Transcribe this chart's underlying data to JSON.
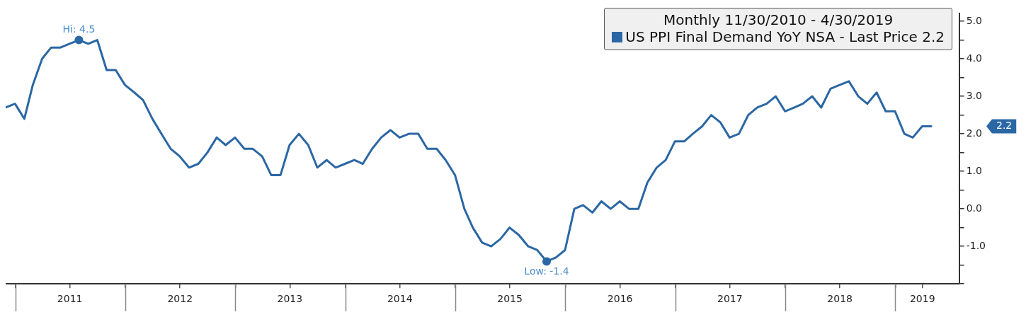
{
  "chart_data": {
    "type": "line",
    "legend_title": "Monthly 11/30/2010 - 4/30/2019",
    "legend": "top right",
    "marker": "none",
    "line_style": "solid",
    "x": [
      "2010-11-30",
      "2010-12-31",
      "2011-01-31",
      "2011-02-28",
      "2011-03-31",
      "2011-04-30",
      "2011-05-31",
      "2011-06-30",
      "2011-07-31",
      "2011-08-31",
      "2011-09-30",
      "2011-10-31",
      "2011-11-30",
      "2011-12-31",
      "2012-01-31",
      "2012-02-29",
      "2012-03-31",
      "2012-04-30",
      "2012-05-31",
      "2012-06-30",
      "2012-07-31",
      "2012-08-31",
      "2012-09-30",
      "2012-10-31",
      "2012-11-30",
      "2012-12-31",
      "2013-01-31",
      "2013-02-28",
      "2013-03-31",
      "2013-04-30",
      "2013-05-31",
      "2013-06-30",
      "2013-07-31",
      "2013-08-31",
      "2013-09-30",
      "2013-10-31",
      "2013-11-30",
      "2013-12-31",
      "2014-01-31",
      "2014-02-28",
      "2014-03-31",
      "2014-04-30",
      "2014-05-31",
      "2014-06-30",
      "2014-07-31",
      "2014-08-31",
      "2014-09-30",
      "2014-10-31",
      "2014-11-30",
      "2014-12-31",
      "2015-01-31",
      "2015-02-28",
      "2015-03-31",
      "2015-04-30",
      "2015-05-31",
      "2015-06-30",
      "2015-07-31",
      "2015-08-31",
      "2015-09-30",
      "2015-10-31",
      "2015-11-30",
      "2015-12-31",
      "2016-01-31",
      "2016-02-29",
      "2016-03-31",
      "2016-04-30",
      "2016-05-31",
      "2016-06-30",
      "2016-07-31",
      "2016-08-31",
      "2016-09-30",
      "2016-10-31",
      "2016-11-30",
      "2016-12-31",
      "2017-01-31",
      "2017-02-28",
      "2017-03-31",
      "2017-04-30",
      "2017-05-31",
      "2017-06-30",
      "2017-07-31",
      "2017-08-31",
      "2017-09-30",
      "2017-10-31",
      "2017-11-30",
      "2017-12-31",
      "2018-01-31",
      "2018-02-28",
      "2018-03-31",
      "2018-04-30",
      "2018-05-31",
      "2018-06-30",
      "2018-07-31",
      "2018-08-31",
      "2018-09-30",
      "2018-10-31",
      "2018-11-30",
      "2018-12-31",
      "2019-01-31",
      "2019-02-28",
      "2019-03-31",
      "2019-04-30"
    ],
    "series": [
      {
        "name": "US PPI Final Demand YoY NSA - Last Price 2.2",
        "color": "#2b67a4",
        "values": [
          2.7,
          2.8,
          2.4,
          3.3,
          4.0,
          4.3,
          4.3,
          4.4,
          4.5,
          4.4,
          4.5,
          3.7,
          3.7,
          3.3,
          3.1,
          2.9,
          2.4,
          2.0,
          1.6,
          1.4,
          1.1,
          1.2,
          1.5,
          1.9,
          1.7,
          1.9,
          1.6,
          1.6,
          1.4,
          0.9,
          0.9,
          1.7,
          2.0,
          1.7,
          1.1,
          1.3,
          1.1,
          1.2,
          1.3,
          1.2,
          1.6,
          1.9,
          2.1,
          1.9,
          2.0,
          2.0,
          1.6,
          1.6,
          1.3,
          0.9,
          0.0,
          -0.5,
          -0.9,
          -1.0,
          -0.8,
          -0.5,
          -0.7,
          -1.0,
          -1.1,
          -1.4,
          -1.3,
          -1.1,
          0.0,
          0.1,
          -0.1,
          0.2,
          0.0,
          0.2,
          0.0,
          0.0,
          0.7,
          1.1,
          1.3,
          1.8,
          1.8,
          2.0,
          2.2,
          2.5,
          2.3,
          1.9,
          2.0,
          2.5,
          2.7,
          2.8,
          3.0,
          2.6,
          2.7,
          2.8,
          3.0,
          2.7,
          3.2,
          3.3,
          3.4,
          3.0,
          2.8,
          3.1,
          2.6,
          2.6,
          2.0,
          1.9,
          2.2,
          2.2
        ]
      }
    ],
    "xlim": [
      "2010-11-30",
      "2019-08-01"
    ],
    "xticks": [
      {
        "value": "2011-01-01",
        "label": null
      },
      {
        "value": "2011-07-01",
        "label": "2011"
      },
      {
        "value": "2012-01-01",
        "label": null
      },
      {
        "value": "2012-07-01",
        "label": "2012"
      },
      {
        "value": "2013-01-01",
        "label": null
      },
      {
        "value": "2013-07-01",
        "label": "2013"
      },
      {
        "value": "2014-01-01",
        "label": null
      },
      {
        "value": "2014-07-01",
        "label": "2014"
      },
      {
        "value": "2015-01-01",
        "label": null
      },
      {
        "value": "2015-07-01",
        "label": "2015"
      },
      {
        "value": "2016-01-01",
        "label": null
      },
      {
        "value": "2016-07-01",
        "label": "2016"
      },
      {
        "value": "2017-01-01",
        "label": null
      },
      {
        "value": "2017-07-01",
        "label": "2017"
      },
      {
        "value": "2018-01-01",
        "label": null
      },
      {
        "value": "2018-07-01",
        "label": "2018"
      },
      {
        "value": "2019-01-01",
        "label": null
      },
      {
        "value": "2019-04-01",
        "label": "2019"
      }
    ],
    "ylim": [
      -2,
      5.2
    ],
    "yticks": [
      {
        "value": -2,
        "label": null
      },
      {
        "value": -1.5,
        "label": null
      },
      {
        "value": -1,
        "label": "-1.0"
      },
      {
        "value": -0.5,
        "label": null
      },
      {
        "value": 0,
        "label": "0.0"
      },
      {
        "value": 0.5,
        "label": null
      },
      {
        "value": 1,
        "label": "1.0"
      },
      {
        "value": 1.5,
        "label": null
      },
      {
        "value": 2,
        "label": "2.0"
      },
      {
        "value": 2.5,
        "label": null
      },
      {
        "value": 3,
        "label": "3.0"
      },
      {
        "value": 3.5,
        "label": null
      },
      {
        "value": 4,
        "label": "4.0"
      },
      {
        "value": 4.5,
        "label": null
      },
      {
        "value": 5,
        "label": "5.0"
      }
    ],
    "annotations": [
      {
        "text": "Hi: 4.5",
        "x": "2011-07-31",
        "y": 4.5
      },
      {
        "text": "Low: -1.4",
        "x": "2015-10-31",
        "y": -1.4
      },
      "2.2"
    ]
  }
}
